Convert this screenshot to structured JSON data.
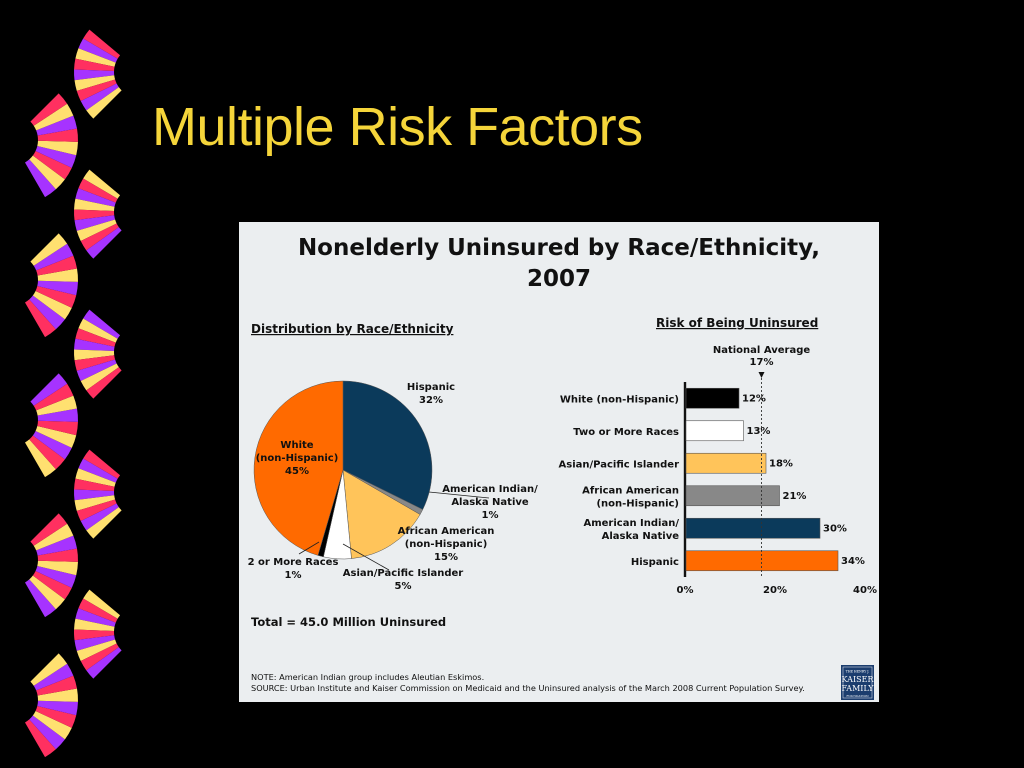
{
  "slide": {
    "title": "Multiple Risk Factors"
  },
  "colors": {
    "background": "#000000",
    "title": "#f5d53a",
    "figure_bg": "#ebeef0",
    "navy": "#0b3a5b",
    "orange": "#ff6a00",
    "light_orange": "#ffc45a",
    "gray": "#888888",
    "white": "#ffffff",
    "black": "#000000",
    "deco": [
      "#ff3060",
      "#a633ff",
      "#ffe070"
    ]
  },
  "figure": {
    "title_line1": "Nonelderly Uninsured by Race/Ethnicity,",
    "title_line2": "2007",
    "note": "NOTE: American Indian group includes Aleutian Eskimos.",
    "source": "SOURCE: Urban Institute and Kaiser Commission on Medicaid and the Uninsured analysis of the March 2008 Current Population Survey.",
    "logo_lines": [
      "THE HENRY J.",
      "KAISER",
      "FAMILY",
      "FOUNDATION"
    ]
  },
  "chart_data": [
    {
      "type": "pie",
      "title": "Distribution by Race/Ethnicity",
      "total_label": "Total = 45.0 Million Uninsured",
      "slices": [
        {
          "label_lines": [
            "Hispanic"
          ],
          "value_label": "32%",
          "value": 32,
          "color": "#0b3a5b"
        },
        {
          "label_lines": [
            "American Indian/",
            "Alaska Native"
          ],
          "value_label": "1%",
          "value": 1,
          "color": "#888888"
        },
        {
          "label_lines": [
            "African American",
            "(non-Hispanic)"
          ],
          "value_label": "15%",
          "value": 15,
          "color": "#ffc45a"
        },
        {
          "label_lines": [
            "Asian/Pacific Islander"
          ],
          "value_label": "5%",
          "value": 5,
          "color": "#ffffff"
        },
        {
          "label_lines": [
            "2 or More Races"
          ],
          "value_label": "1%",
          "value": 1,
          "color": "#000000"
        },
        {
          "label_lines": [
            "White",
            "(non-Hispanic)"
          ],
          "value_label": "45%",
          "value": 45,
          "color": "#ff6a00"
        }
      ]
    },
    {
      "type": "bar",
      "orientation": "horizontal",
      "title": "Risk of Being Uninsured",
      "reference_line": {
        "label_lines": [
          "National Average",
          "17%"
        ],
        "value": 17
      },
      "xlim": [
        0,
        40
      ],
      "x_ticks": [
        0,
        20,
        40
      ],
      "x_tick_labels": [
        "0%",
        "20%",
        "40%"
      ],
      "bars": [
        {
          "label_lines": [
            "White (non-Hispanic)"
          ],
          "value": 12,
          "value_label": "12%",
          "color": "#000000"
        },
        {
          "label_lines": [
            "Two or More Races"
          ],
          "value": 13,
          "value_label": "13%",
          "color": "#ffffff"
        },
        {
          "label_lines": [
            "Asian/Pacific Islander"
          ],
          "value": 18,
          "value_label": "18%",
          "color": "#ffc45a"
        },
        {
          "label_lines": [
            "African American",
            "(non-Hispanic)"
          ],
          "value": 21,
          "value_label": "21%",
          "color": "#888888"
        },
        {
          "label_lines": [
            "American Indian/",
            "Alaska Native"
          ],
          "value": 30,
          "value_label": "30%",
          "color": "#0b3a5b"
        },
        {
          "label_lines": [
            "Hispanic"
          ],
          "value": 34,
          "value_label": "34%",
          "color": "#ff6a00"
        }
      ]
    }
  ]
}
